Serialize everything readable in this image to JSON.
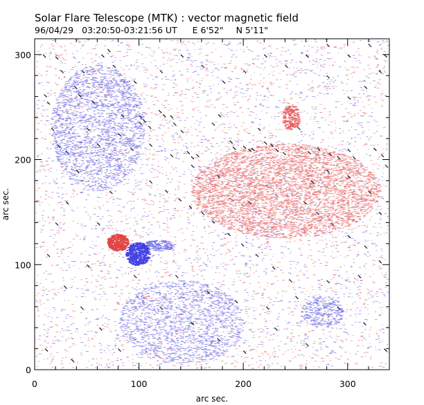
{
  "chart_data": {
    "type": "vector-magnetogram",
    "title": "Solar Flare Telescope (MTK) : vector magnetic field",
    "date": "96/04/29",
    "time_range": "03:20:50-03:21:56 UT",
    "location_e": "E 6'52\"",
    "location_n": "N 5'11\"",
    "xlabel": "arc sec.",
    "ylabel": "arc sec.",
    "xlim": [
      0,
      340
    ],
    "ylim": [
      0,
      315
    ],
    "x_ticks": [
      0,
      100,
      200,
      300
    ],
    "y_ticks": [
      0,
      100,
      200,
      300
    ],
    "x_minor_step": 20,
    "y_minor_step": 20,
    "colors": {
      "positive": "#e23a3a",
      "negative": "#3a3ae2",
      "vector": "#000000"
    },
    "polarity_regions": [
      {
        "name": "positive-spot",
        "polarity": "positive",
        "x": 79,
        "y": 121,
        "rx": 10,
        "ry": 8,
        "strength": 1.0
      },
      {
        "name": "negative-spot",
        "polarity": "negative",
        "x": 98,
        "y": 110,
        "rx": 11,
        "ry": 11,
        "strength": 1.0
      },
      {
        "name": "negative-tail",
        "polarity": "negative",
        "x": 118,
        "y": 118,
        "rx": 16,
        "ry": 5,
        "strength": 0.55
      },
      {
        "name": "positive-plage-east",
        "polarity": "positive",
        "x": 245,
        "y": 240,
        "rx": 8,
        "ry": 12,
        "strength": 0.7
      },
      {
        "name": "positive-plage-mid",
        "polarity": "positive",
        "x": 240,
        "y": 170,
        "rx": 90,
        "ry": 45,
        "strength": 0.25
      },
      {
        "name": "negative-plage-west",
        "polarity": "negative",
        "x": 60,
        "y": 230,
        "rx": 45,
        "ry": 60,
        "strength": 0.18
      },
      {
        "name": "negative-plage-south",
        "polarity": "negative",
        "x": 140,
        "y": 45,
        "rx": 60,
        "ry": 40,
        "strength": 0.15
      },
      {
        "name": "negative-plage-sw",
        "polarity": "negative",
        "x": 275,
        "y": 55,
        "rx": 20,
        "ry": 15,
        "strength": 0.25
      }
    ],
    "vectors": [
      [
        9,
        262
      ],
      [
        12,
        255
      ],
      [
        16,
        230
      ],
      [
        22,
        214
      ],
      [
        30,
        208
      ],
      [
        50,
        230
      ],
      [
        64,
        300
      ],
      [
        70,
        305
      ],
      [
        83,
        243
      ],
      [
        92,
        211
      ],
      [
        100,
        242
      ],
      [
        100,
        236
      ],
      [
        104,
        238
      ],
      [
        109,
        232
      ],
      [
        119,
        247
      ],
      [
        123,
        243
      ],
      [
        130,
        242
      ],
      [
        133,
        235
      ],
      [
        140,
        228
      ],
      [
        146,
        208
      ],
      [
        150,
        203
      ],
      [
        155,
        205
      ],
      [
        170,
        235
      ],
      [
        176,
        243
      ],
      [
        187,
        218
      ],
      [
        190,
        212
      ],
      [
        200,
        213
      ],
      [
        205,
        210
      ],
      [
        208,
        211
      ],
      [
        214,
        230
      ],
      [
        220,
        217
      ],
      [
        226,
        215
      ],
      [
        231,
        210
      ],
      [
        238,
        207
      ],
      [
        252,
        231
      ],
      [
        262,
        208
      ],
      [
        271,
        211
      ],
      [
        282,
        206
      ],
      [
        290,
        203
      ],
      [
        300,
        210
      ],
      [
        305,
        203
      ],
      [
        325,
        211
      ],
      [
        332,
        205
      ],
      [
        336,
        195
      ],
      [
        20,
        298
      ],
      [
        38,
        270
      ],
      [
        42,
        262
      ],
      [
        55,
        256
      ],
      [
        110,
        180
      ],
      [
        125,
        171
      ],
      [
        138,
        163
      ],
      [
        148,
        156
      ],
      [
        160,
        150
      ],
      [
        170,
        142
      ],
      [
        185,
        130
      ],
      [
        198,
        120
      ],
      [
        212,
        110
      ],
      [
        228,
        98
      ],
      [
        244,
        86
      ],
      [
        258,
        160
      ],
      [
        270,
        150
      ],
      [
        284,
        140
      ],
      [
        300,
        128
      ],
      [
        316,
        118
      ],
      [
        330,
        104
      ],
      [
        60,
        140
      ],
      [
        72,
        170
      ],
      [
        40,
        190
      ],
      [
        30,
        160
      ],
      [
        20,
        140
      ],
      [
        12,
        110
      ],
      [
        50,
        100
      ],
      [
        28,
        80
      ],
      [
        44,
        60
      ],
      [
        62,
        40
      ],
      [
        80,
        20
      ],
      [
        120,
        60
      ],
      [
        150,
        45
      ],
      [
        175,
        30
      ],
      [
        200,
        18
      ],
      [
        230,
        40
      ],
      [
        260,
        25
      ],
      [
        290,
        60
      ],
      [
        315,
        45
      ],
      [
        335,
        20
      ],
      [
        10,
        20
      ],
      [
        35,
        10
      ],
      [
        95,
        90
      ],
      [
        135,
        90
      ],
      [
        165,
        75
      ],
      [
        192,
        66
      ],
      [
        222,
        60
      ],
      [
        250,
        70
      ],
      [
        280,
        85
      ],
      [
        310,
        90
      ],
      [
        330,
        150
      ],
      [
        320,
        170
      ],
      [
        300,
        185
      ],
      [
        280,
        190
      ],
      [
        265,
        180
      ],
      [
        205,
        160
      ],
      [
        175,
        185
      ],
      [
        150,
        195
      ],
      [
        130,
        205
      ],
      [
        110,
        215
      ],
      [
        80,
        225
      ],
      [
        60,
        215
      ],
      [
        300,
        260
      ],
      [
        316,
        270
      ],
      [
        330,
        285
      ],
      [
        280,
        280
      ],
      [
        260,
        300
      ],
      [
        240,
        290
      ],
      [
        220,
        300
      ],
      [
        200,
        285
      ],
      [
        180,
        275
      ],
      [
        160,
        290
      ],
      [
        140,
        300
      ],
      [
        120,
        285
      ],
      [
        95,
        275
      ],
      [
        75,
        290
      ],
      [
        45,
        285
      ],
      [
        25,
        285
      ],
      [
        8,
        300
      ],
      [
        335,
        300
      ],
      [
        320,
        310
      ],
      [
        300,
        300
      ],
      [
        280,
        310
      ]
    ]
  }
}
